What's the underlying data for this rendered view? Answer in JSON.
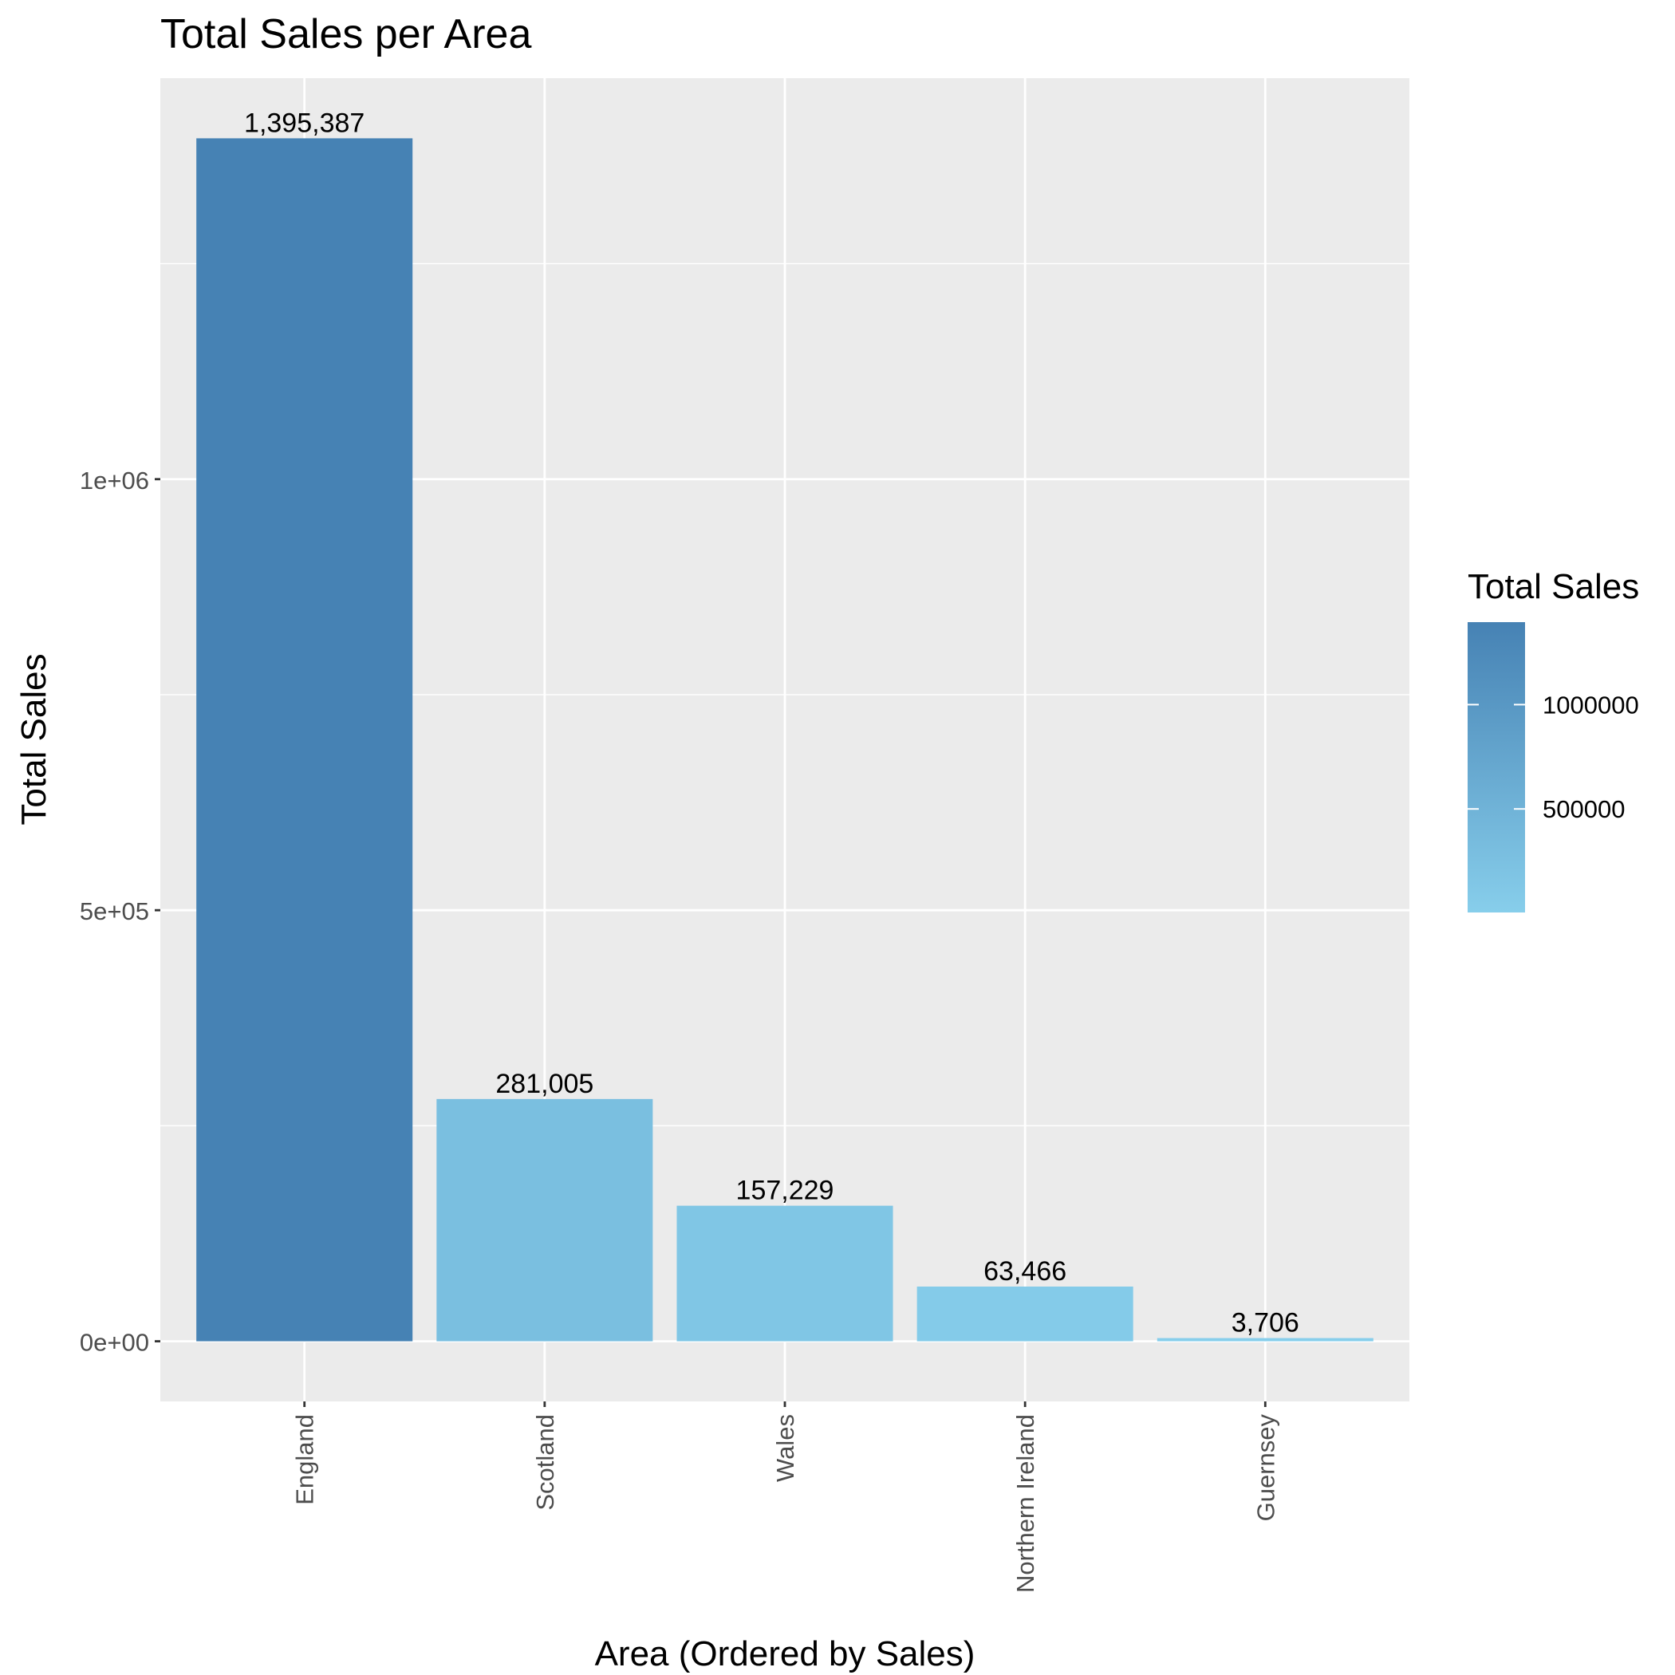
{
  "chart_data": {
    "type": "bar",
    "title": "Total Sales per Area",
    "xlabel": "Area (Ordered by Sales)",
    "ylabel": "Total Sales",
    "categories": [
      "England",
      "Scotland",
      "Wales",
      "Northern Ireland",
      "Guernsey"
    ],
    "values": [
      1395387,
      281005,
      157229,
      63466,
      3706
    ],
    "data_labels": [
      "1,395,387",
      "281,005",
      "157,229",
      "63,466",
      "3,706"
    ],
    "ylim": [
      -69769,
      1465156
    ],
    "y_ticks": [
      {
        "value": 0,
        "label": "0e+00"
      },
      {
        "value": 500000,
        "label": "5e+05"
      },
      {
        "value": 1000000,
        "label": "1e+06"
      }
    ],
    "y_minor_ticks": [
      250000,
      750000,
      1250000
    ],
    "grid": true,
    "legend": {
      "title": "Total Sales",
      "position": "right",
      "type": "colorbar",
      "range": [
        3706,
        1395387
      ],
      "color_low": "#87ceeb",
      "color_high": "#4682b4",
      "ticks": [
        {
          "value": 1000000,
          "label": "1000000"
        },
        {
          "value": 500000,
          "label": "500000"
        }
      ]
    },
    "colors": {
      "panel_background": "#ebebeb",
      "grid": "#ffffff",
      "page_background": "#ffffff"
    }
  }
}
